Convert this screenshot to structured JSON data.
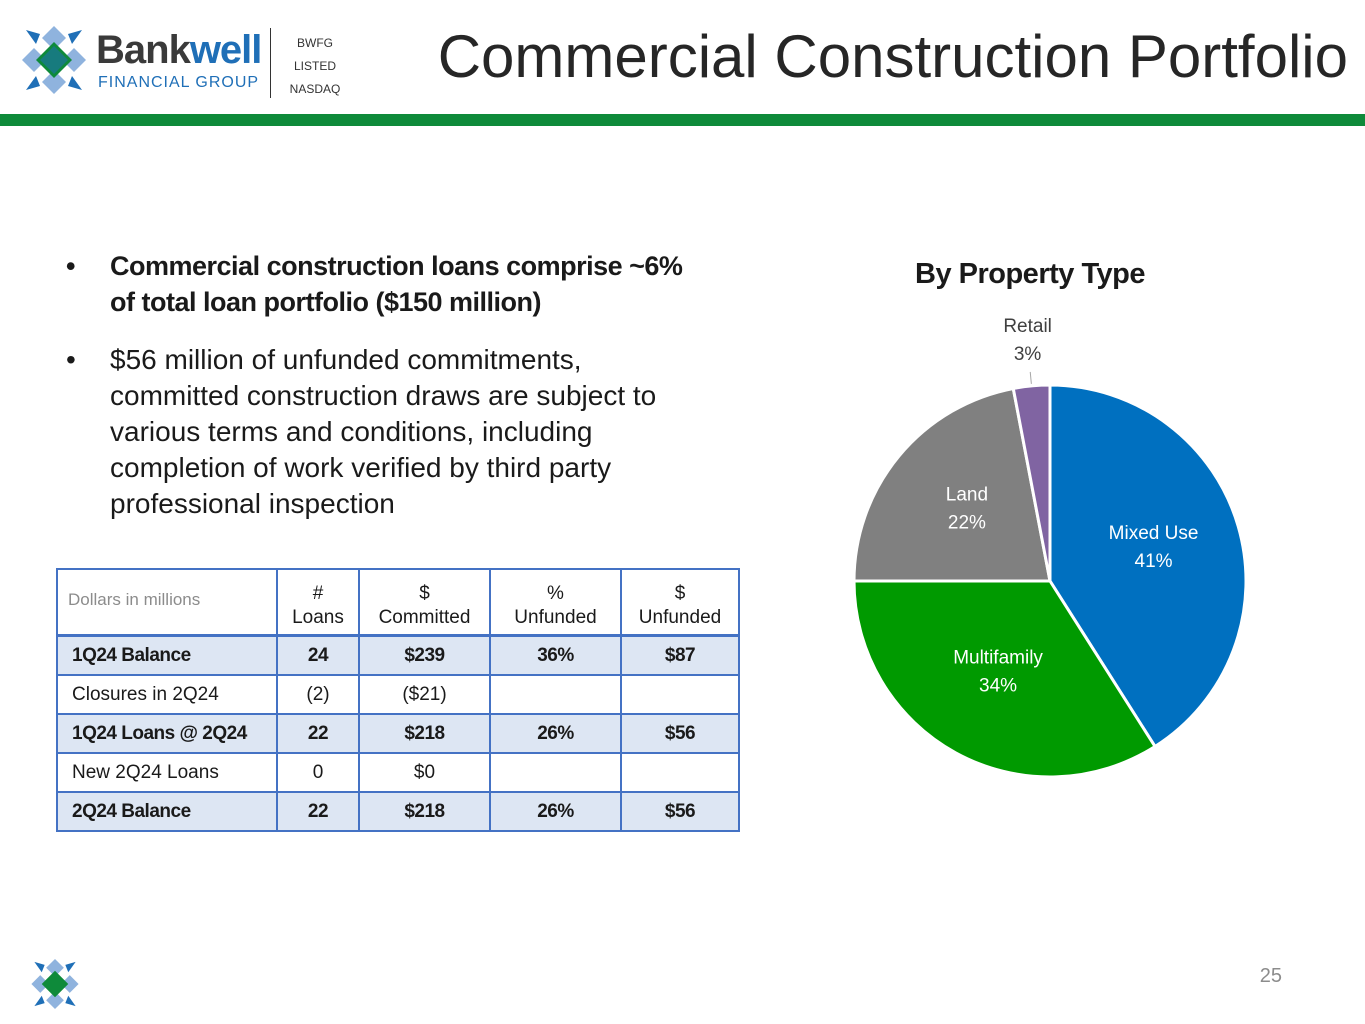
{
  "brand": {
    "name_part1": "Bank",
    "name_part2": "well",
    "sub": "FINANCIAL GROUP",
    "ticker_lines": [
      "BWFG",
      "LISTED",
      "NASDAQ"
    ],
    "colors": {
      "blue": "#1f6fb7",
      "green": "#0e8a3a",
      "light_blue": "#8fb3de"
    }
  },
  "page": {
    "title": "Commercial Construction Portfolio",
    "page_number": "25"
  },
  "bullets": [
    "Commercial construction loans comprise ~6% of total loan portfolio ($150 million)",
    "$56 million of unfunded commitments, committed construction draws are subject to various terms and conditions, including completion of work verified by third party professional inspection"
  ],
  "table": {
    "caption": "Dollars in millions",
    "headers": [
      [
        "#",
        "Loans"
      ],
      [
        "$",
        "Committed"
      ],
      [
        "%",
        "Unfunded"
      ],
      [
        "$",
        "Unfunded"
      ]
    ],
    "rows": [
      {
        "label": "1Q24 Balance",
        "cells": [
          "24",
          "$239",
          "36%",
          "$87"
        ]
      },
      {
        "label": "Closures in 2Q24",
        "cells": [
          "(2)",
          "($21)",
          "",
          ""
        ]
      },
      {
        "label": "1Q24 Loans @ 2Q24",
        "cells": [
          "22",
          "$218",
          "26%",
          "$56"
        ]
      },
      {
        "label": "New 2Q24 Loans",
        "cells": [
          "0",
          "$0",
          "",
          ""
        ]
      },
      {
        "label": "2Q24 Balance",
        "cells": [
          "22",
          "$218",
          "26%",
          "$56"
        ]
      }
    ]
  },
  "chart_data": {
    "type": "pie",
    "title": "By Property Type",
    "slices": [
      {
        "label": "Mixed Use",
        "value": 41,
        "display": "41%",
        "color": "#0070c0",
        "label_color": "#ffffff"
      },
      {
        "label": "Multifamily",
        "value": 34,
        "display": "34%",
        "color": "#009a00",
        "label_color": "#ffffff"
      },
      {
        "label": "Land",
        "value": 22,
        "display": "22%",
        "color": "#808080",
        "label_color": "#ffffff"
      },
      {
        "label": "Retail",
        "value": 3,
        "display": "3%",
        "color": "#8064a2",
        "label_color": "#404040"
      }
    ],
    "start_angle": "12 o'clock",
    "direction": "clockwise"
  }
}
